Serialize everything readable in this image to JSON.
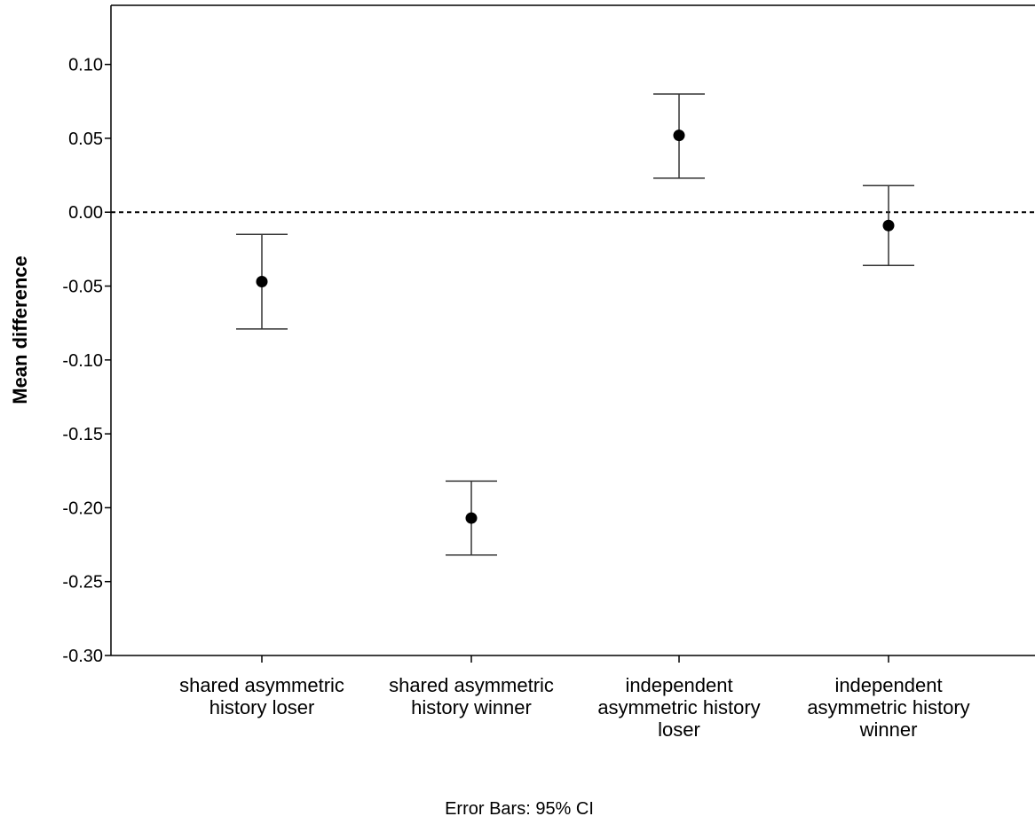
{
  "chart_data": {
    "type": "scatter",
    "title": "",
    "xlabel": "",
    "ylabel": "Mean difference",
    "footnote": "Error Bars: 95% CI",
    "ylim": [
      -0.3,
      0.14
    ],
    "yticks": [
      0.1,
      0.05,
      0.0,
      -0.05,
      -0.1,
      -0.15,
      -0.2,
      -0.25,
      -0.3
    ],
    "ytick_labels": [
      "0.10",
      "0.05",
      "0.00",
      "-0.05",
      "-0.10",
      "-0.15",
      "-0.20",
      "-0.25",
      "-0.30"
    ],
    "reference_line": {
      "y": 0.0,
      "style": "dashed"
    },
    "grid": false,
    "categories": [
      {
        "lines": [
          "shared asymmetric",
          "history loser"
        ]
      },
      {
        "lines": [
          "shared asymmetric",
          "history winner"
        ]
      },
      {
        "lines": [
          "independent",
          "asymmetric history",
          "loser"
        ]
      },
      {
        "lines": [
          "independent",
          "asymmetric history",
          "winner"
        ]
      }
    ],
    "points": [
      {
        "mean": -0.047,
        "ci_low": -0.079,
        "ci_high": -0.015
      },
      {
        "mean": -0.207,
        "ci_low": -0.232,
        "ci_high": -0.182
      },
      {
        "mean": 0.052,
        "ci_low": 0.023,
        "ci_high": 0.08
      },
      {
        "mean": -0.009,
        "ci_low": -0.036,
        "ci_high": 0.018
      }
    ]
  }
}
